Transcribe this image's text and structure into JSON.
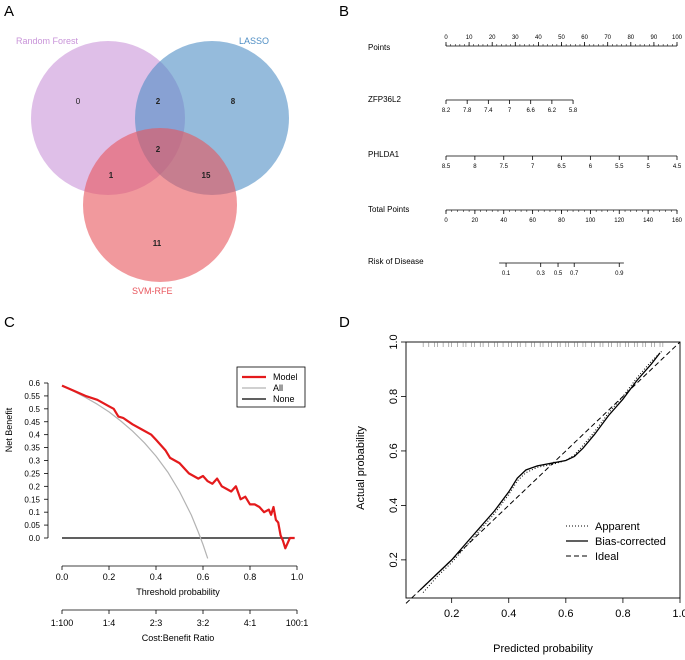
{
  "panel_labels": {
    "a": "A",
    "b": "B",
    "c": "C",
    "d": "D"
  },
  "colors": {
    "rf": "#c994d9",
    "lasso": "#4f8ec4",
    "svm": "#e8555c",
    "model": "#e41a1c",
    "all": "#b3b3b3",
    "none": "#000000"
  },
  "chart_data": [
    {
      "type": "venn",
      "sets": [
        {
          "name": "Random Forest",
          "color": "#c994d9"
        },
        {
          "name": "LASSO",
          "color": "#4f8ec4"
        },
        {
          "name": "SVM-RFE",
          "color": "#e8555c"
        }
      ],
      "regions": {
        "rf_only": "0",
        "lasso_only": "8",
        "svm_only": "11",
        "rf_lasso": "2",
        "rf_svm": "1",
        "lasso_svm": "15",
        "all_three": "2"
      }
    },
    {
      "type": "nomogram",
      "rows": [
        {
          "label": "Points",
          "min": 0,
          "max": 100,
          "ticks": [
            "0",
            "10",
            "20",
            "30",
            "40",
            "50",
            "60",
            "70",
            "80",
            "90",
            "100"
          ],
          "minor_step": 2,
          "labels_above": true
        },
        {
          "label": "ZFP36L2",
          "min": 0,
          "max": 55,
          "ticks": [
            "8.2",
            "7.8",
            "7.4",
            "7",
            "6.6",
            "6.2",
            "5.8"
          ],
          "minor_step": 0,
          "labels_above": false
        },
        {
          "label": "PHLDA1",
          "min": 0,
          "max": 100,
          "ticks": [
            "8.5",
            "8",
            "7.5",
            "7",
            "6.5",
            "6",
            "5.5",
            "5",
            "4.5"
          ],
          "minor_step": 0,
          "labels_above": false
        },
        {
          "label": "Total Points",
          "min": 0,
          "max": 160,
          "ticks": [
            "0",
            "20",
            "40",
            "60",
            "80",
            "100",
            "120",
            "140",
            "160"
          ],
          "minor_step": 4,
          "labels_above": false
        },
        {
          "label": "Risk of Disease",
          "min": 23,
          "max": 77,
          "ticks": [
            "0.1",
            "0.3",
            "0.5",
            "0.7",
            "0.9"
          ],
          "tick_points": [
            26,
            41,
            48.5,
            55.5,
            75
          ],
          "minor_step": 0,
          "labels_above": false
        }
      ]
    },
    {
      "type": "line",
      "title": "",
      "xlabel": "Threshold probability",
      "ylabel": "Net Benefit",
      "xlim": [
        0,
        1.0
      ],
      "ylim": [
        -0.05,
        0.6
      ],
      "xticks": [
        "0.0",
        "0.2",
        "0.4",
        "0.6",
        "0.8",
        "1.0"
      ],
      "yticks": [
        "0.0",
        "0.05",
        "0.1",
        "0.15",
        "0.2",
        "0.25",
        "0.3",
        "0.35",
        "0.4",
        "0.45",
        "0.5",
        "0.55",
        "0.6"
      ],
      "secondary_axis": {
        "label": "Cost:Benefit Ratio",
        "ticks": [
          "1:100",
          "1:4",
          "2:3",
          "3:2",
          "4:1",
          "100:1"
        ]
      },
      "legend": [
        "Model",
        "All",
        "None"
      ],
      "series": [
        {
          "name": "Model",
          "x": [
            0.0,
            0.05,
            0.1,
            0.15,
            0.18,
            0.2,
            0.22,
            0.24,
            0.26,
            0.3,
            0.34,
            0.38,
            0.4,
            0.42,
            0.44,
            0.46,
            0.48,
            0.5,
            0.52,
            0.54,
            0.56,
            0.58,
            0.6,
            0.62,
            0.64,
            0.66,
            0.68,
            0.7,
            0.72,
            0.74,
            0.76,
            0.78,
            0.8,
            0.82,
            0.84,
            0.86,
            0.88,
            0.89,
            0.9,
            0.91,
            0.92,
            0.93,
            0.94,
            0.95,
            0.96,
            0.97,
            0.99
          ],
          "y": [
            0.59,
            0.57,
            0.55,
            0.535,
            0.52,
            0.51,
            0.5,
            0.47,
            0.465,
            0.44,
            0.42,
            0.4,
            0.38,
            0.36,
            0.34,
            0.31,
            0.3,
            0.29,
            0.27,
            0.25,
            0.24,
            0.23,
            0.24,
            0.22,
            0.21,
            0.23,
            0.2,
            0.19,
            0.18,
            0.2,
            0.15,
            0.16,
            0.13,
            0.13,
            0.12,
            0.1,
            0.11,
            0.09,
            0.12,
            0.07,
            0.06,
            0.01,
            -0.01,
            -0.04,
            -0.02,
            0.0,
            0.0
          ]
        },
        {
          "name": "All",
          "x": [
            0.0,
            0.05,
            0.1,
            0.15,
            0.2,
            0.25,
            0.3,
            0.35,
            0.4,
            0.45,
            0.5,
            0.55,
            0.58,
            0.6,
            0.62
          ],
          "y": [
            0.59,
            0.568,
            0.544,
            0.518,
            0.488,
            0.453,
            0.414,
            0.369,
            0.317,
            0.255,
            0.18,
            0.089,
            0.023,
            -0.025,
            -0.079
          ]
        },
        {
          "name": "None",
          "x": [
            0.0,
            0.99
          ],
          "y": [
            0.0,
            0.0
          ]
        }
      ]
    },
    {
      "type": "line",
      "title": "",
      "xlabel": "Predicted probability",
      "ylabel": "Actual probability",
      "xlim": [
        0.04,
        1.0
      ],
      "ylim": [
        0.06,
        1.0
      ],
      "xticks": [
        "0.2",
        "0.4",
        "0.6",
        "0.8",
        "1.0"
      ],
      "yticks": [
        "0.2",
        "0.4",
        "0.6",
        "0.8",
        "1.0"
      ],
      "legend": [
        "Apparent",
        "Bias-corrected",
        "Ideal"
      ],
      "series": [
        {
          "name": "Ideal",
          "x": [
            0.04,
            1.0
          ],
          "y": [
            0.04,
            1.0
          ]
        },
        {
          "name": "Bias-corrected",
          "x": [
            0.09,
            0.15,
            0.2,
            0.25,
            0.3,
            0.35,
            0.4,
            0.43,
            0.46,
            0.5,
            0.55,
            0.6,
            0.63,
            0.66,
            0.7,
            0.75,
            0.8,
            0.85,
            0.9,
            0.93
          ],
          "y": [
            0.09,
            0.15,
            0.2,
            0.26,
            0.32,
            0.38,
            0.45,
            0.5,
            0.53,
            0.545,
            0.555,
            0.565,
            0.58,
            0.61,
            0.66,
            0.73,
            0.79,
            0.86,
            0.92,
            0.96
          ]
        },
        {
          "name": "Apparent",
          "x": [
            0.1,
            0.15,
            0.2,
            0.25,
            0.3,
            0.35,
            0.4,
            0.43,
            0.46,
            0.5,
            0.55,
            0.6,
            0.63,
            0.66,
            0.7,
            0.75,
            0.8,
            0.85,
            0.9,
            0.94
          ],
          "y": [
            0.08,
            0.14,
            0.19,
            0.25,
            0.31,
            0.37,
            0.44,
            0.49,
            0.52,
            0.54,
            0.55,
            0.565,
            0.585,
            0.62,
            0.67,
            0.74,
            0.8,
            0.87,
            0.93,
            0.97
          ]
        }
      ],
      "rug": [
        0.1,
        0.12,
        0.14,
        0.15,
        0.17,
        0.19,
        0.2,
        0.22,
        0.24,
        0.25,
        0.27,
        0.28,
        0.3,
        0.31,
        0.33,
        0.35,
        0.36,
        0.38,
        0.4,
        0.41,
        0.43,
        0.44,
        0.46,
        0.48,
        0.49,
        0.51,
        0.52,
        0.54,
        0.55,
        0.57,
        0.58,
        0.6,
        0.61,
        0.63,
        0.64,
        0.66,
        0.67,
        0.69,
        0.7,
        0.72,
        0.73,
        0.75,
        0.76,
        0.78,
        0.79,
        0.81,
        0.82,
        0.84,
        0.85,
        0.87,
        0.88,
        0.9,
        0.91,
        0.93,
        0.94
      ]
    }
  ]
}
